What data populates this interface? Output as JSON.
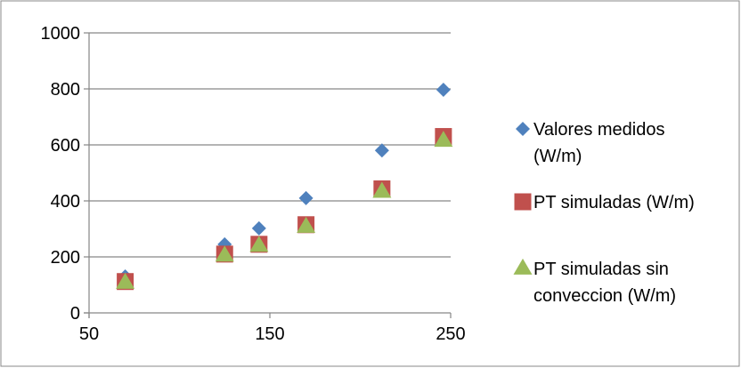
{
  "chart_data": {
    "type": "scatter",
    "title": "",
    "xlabel": "",
    "ylabel": "",
    "xlim": [
      50,
      250
    ],
    "ylim": [
      0,
      1000
    ],
    "xticks": [
      50,
      150,
      250
    ],
    "yticks": [
      0,
      200,
      400,
      600,
      800,
      1000
    ],
    "grid": "horizontal",
    "legend_position": "right",
    "series": [
      {
        "name": "Valores medidos (W/m)",
        "legend_lines": [
          "Valores medidos",
          "(W/m)"
        ],
        "marker": "diamond",
        "color": "#4F81BD",
        "points": [
          [
            70,
            130
          ],
          [
            125,
            245
          ],
          [
            144,
            302
          ],
          [
            170,
            410
          ],
          [
            212,
            580
          ],
          [
            246,
            797
          ]
        ]
      },
      {
        "name": "PT simuladas (W/m)",
        "legend_lines": [
          "PT simuladas (W/m)"
        ],
        "marker": "square",
        "color": "#C0504D",
        "points": [
          [
            70,
            112
          ],
          [
            125,
            210
          ],
          [
            144,
            245
          ],
          [
            170,
            315
          ],
          [
            212,
            443
          ],
          [
            246,
            630
          ]
        ]
      },
      {
        "name": "PT simuladas sin conveccion (W/m)",
        "legend_lines": [
          "PT simuladas sin",
          "conveccion (W/m)"
        ],
        "marker": "triangle",
        "color": "#9BBB59",
        "points": [
          [
            70,
            108
          ],
          [
            125,
            205
          ],
          [
            144,
            240
          ],
          [
            170,
            308
          ],
          [
            212,
            433
          ],
          [
            246,
            615
          ]
        ]
      }
    ]
  }
}
